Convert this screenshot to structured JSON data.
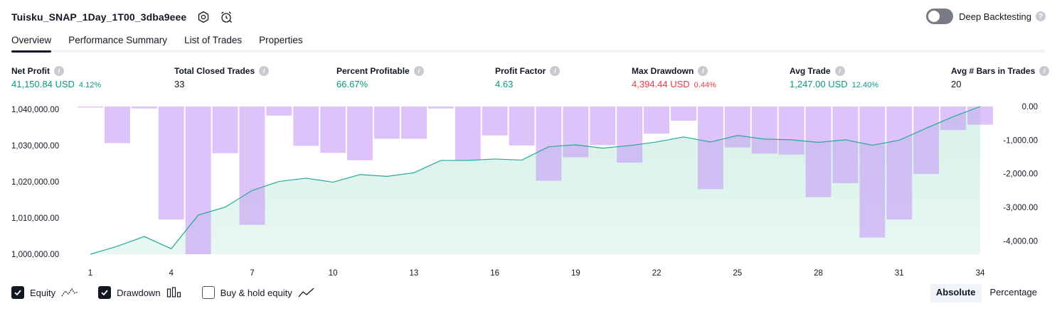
{
  "header": {
    "title": "Tuisku_SNAP_1Day_1T00_3dba9eee",
    "deep_backtesting_label": "Deep Backtesting",
    "help_glyph": "?"
  },
  "tabs": [
    {
      "label": "Overview",
      "active": true
    },
    {
      "label": "Performance Summary",
      "active": false
    },
    {
      "label": "List of Trades",
      "active": false
    },
    {
      "label": "Properties",
      "active": false
    }
  ],
  "metrics": {
    "net_profit": {
      "label": "Net Profit",
      "value": "41,150.84 USD",
      "pct": "4.12%"
    },
    "total_closed_trades": {
      "label": "Total Closed Trades",
      "value": "33"
    },
    "percent_profitable": {
      "label": "Percent Profitable",
      "value": "66.67%"
    },
    "profit_factor": {
      "label": "Profit Factor",
      "value": "4.63"
    },
    "max_drawdown": {
      "label": "Max Drawdown",
      "value": "4,394.44 USD",
      "pct": "0.44%"
    },
    "avg_trade": {
      "label": "Avg Trade",
      "value": "1,247.00 USD",
      "pct": "12.40%"
    },
    "avg_bars": {
      "label": "Avg # Bars in Trades",
      "value": "20"
    }
  },
  "info_glyph": "i",
  "legend": {
    "equity": {
      "label": "Equity",
      "checked": true
    },
    "drawdown": {
      "label": "Drawdown",
      "checked": true
    },
    "buy_hold": {
      "label": "Buy & hold equity",
      "checked": false
    }
  },
  "mode": {
    "absolute": "Absolute",
    "percentage": "Percentage"
  },
  "colors": {
    "equity_line": "#22ab94",
    "equity_fill": "#d6f1e9",
    "drawdown_bar": "#e1c6fc",
    "positive": "#089981",
    "negative": "#f23645"
  },
  "icons": [
    "settings-icon",
    "alarm-icon",
    "help-icon",
    "info-icon",
    "check-icon",
    "equity-line-icon",
    "drawdown-bars-icon",
    "buy-hold-line-icon"
  ],
  "chart_data": {
    "type": "line",
    "left_axis": {
      "ticks": [
        "1,040,000.00",
        "1,030,000.00",
        "1,020,000.00",
        "1,010,000.00",
        "1,000,000.00"
      ],
      "tick_values": [
        1040000,
        1030000,
        1020000,
        1010000,
        1000000
      ],
      "range": [
        1000000,
        1040800
      ]
    },
    "right_axis": {
      "ticks": [
        "0.00",
        "-1,000.00",
        "-2,000.00",
        "-3,000.00",
        "-4,000.00"
      ],
      "tick_values": [
        0,
        -1000,
        -2000,
        -3000,
        -4000
      ],
      "range": [
        -4394.44,
        0
      ]
    },
    "x_ticks": [
      "1",
      "4",
      "7",
      "10",
      "13",
      "16",
      "19",
      "22",
      "25",
      "28",
      "31",
      "34"
    ],
    "x_tick_values": [
      1,
      4,
      7,
      10,
      13,
      16,
      19,
      22,
      25,
      28,
      31,
      34
    ],
    "x": [
      1,
      2,
      3,
      4,
      5,
      6,
      7,
      8,
      9,
      10,
      11,
      12,
      13,
      14,
      15,
      16,
      17,
      18,
      19,
      20,
      21,
      22,
      23,
      24,
      25,
      26,
      27,
      28,
      29,
      30,
      31,
      32,
      33,
      34
    ],
    "series": [
      {
        "name": "Equity",
        "values": [
          1000000,
          1002200,
          1004900,
          1001500,
          1010800,
          1013000,
          1017600,
          1020100,
          1021000,
          1019900,
          1022000,
          1021500,
          1022500,
          1025900,
          1025900,
          1026300,
          1026000,
          1029700,
          1030200,
          1029300,
          1030000,
          1031000,
          1032400,
          1031000,
          1032800,
          1031800,
          1031600,
          1030900,
          1031600,
          1030100,
          1031500,
          1034800,
          1038000,
          1040800
        ]
      },
      {
        "name": "Drawdown",
        "values": [
          -30,
          -1090,
          -60,
          -3360,
          -4394,
          -1390,
          -3520,
          -270,
          -1170,
          -1380,
          -1600,
          -960,
          -960,
          -60,
          -1600,
          -860,
          -1160,
          -2210,
          -1510,
          -1150,
          -1670,
          -810,
          -420,
          -2460,
          -1220,
          -1400,
          -1430,
          -2700,
          -2280,
          -3900,
          -3360,
          -2010,
          -700,
          -540
        ]
      }
    ]
  }
}
